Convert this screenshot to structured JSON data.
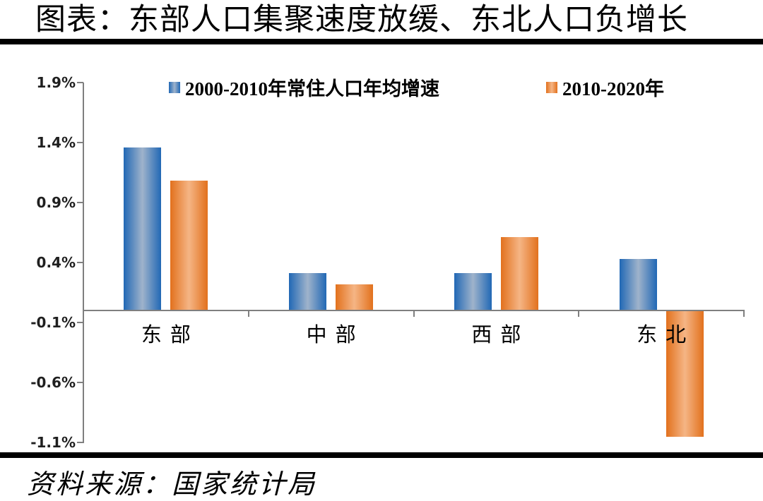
{
  "header": {
    "title": "图表：东部人口集聚速度放缓、东北人口负增长"
  },
  "footer": {
    "source": "资料来源：国家统计局"
  },
  "colors": {
    "bar_blue_edge": "#2168B5",
    "bar_blue_mid": "#9FB3CB",
    "bar_orange_edge": "#E2711D",
    "bar_orange_mid": "#F5B585",
    "axis_gray": "#7F7F7F",
    "divider_black": "#000000"
  },
  "chart_data": {
    "type": "bar",
    "title": "图表：东部人口集聚速度放缓、东北人口负增长",
    "categories": [
      "东部",
      "中部",
      "西部",
      "东北"
    ],
    "series": [
      {
        "name": "2000-2010年常住人口年均增速",
        "color_edge": "#2168B5",
        "color_mid": "#9FB3CB",
        "values": [
          1.36,
          0.31,
          0.31,
          0.43
        ]
      },
      {
        "name": "2010-2020年",
        "color_edge": "#E2711D",
        "color_mid": "#F5B585",
        "values": [
          1.08,
          0.22,
          0.61,
          -1.05
        ]
      }
    ],
    "xlabel": "",
    "ylabel": "",
    "y_ticks": [
      "1.9%",
      "1.4%",
      "0.9%",
      "0.4%",
      "-0.1%",
      "-0.6%",
      "-1.1%"
    ],
    "ylim": [
      -1.1,
      1.9
    ],
    "y_tick_step": 0.5,
    "unit": "%",
    "grid": false,
    "legend_position": "top",
    "source": "资料来源：国家统计局"
  }
}
